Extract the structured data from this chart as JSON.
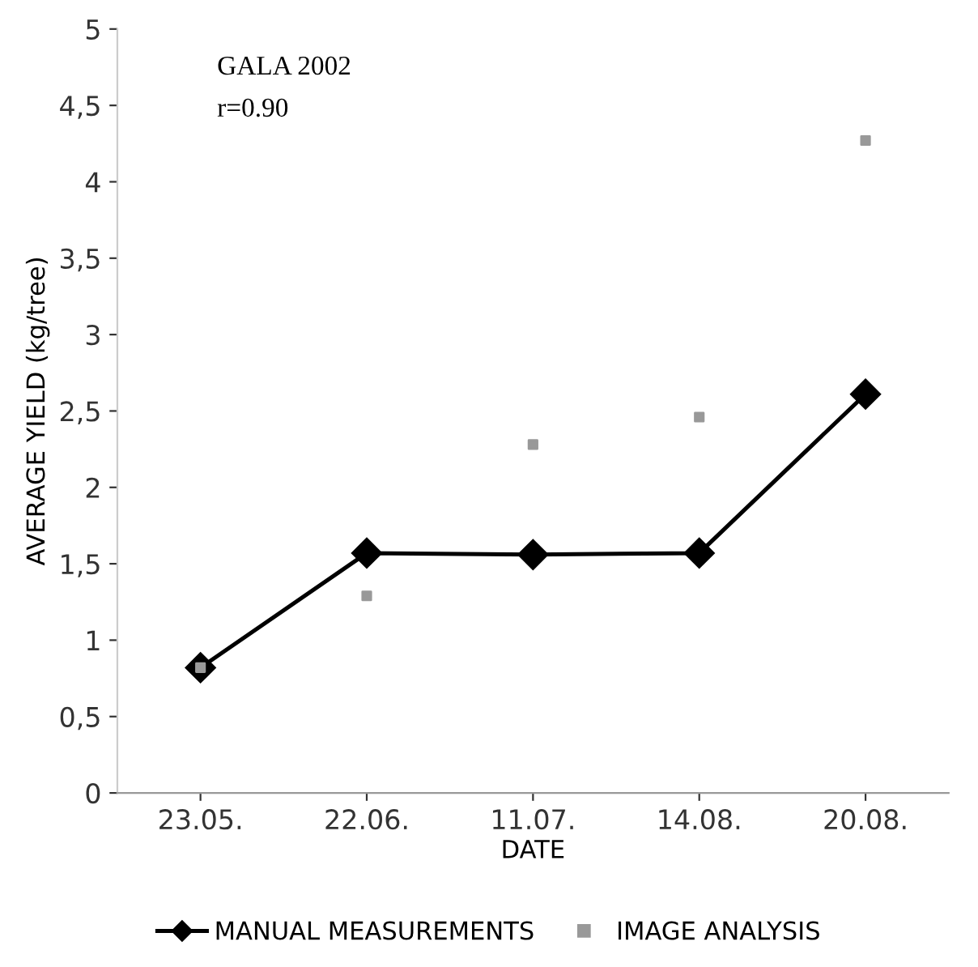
{
  "chart_data": {
    "type": "line",
    "xlabel": "DATE",
    "ylabel": "AVERAGE YIELD (kg/tree)",
    "categories": [
      "23.05.",
      "22.06.",
      "11.07.",
      "14.08.",
      "20.08."
    ],
    "series": [
      {
        "name": "MANUAL MEASUREMENTS",
        "color": "#000000",
        "marker": "diamond",
        "line_style": "solid",
        "values": [
          0.82,
          1.57,
          1.56,
          1.57,
          2.61
        ]
      },
      {
        "name": "IMAGE ANALYSIS",
        "color": "#999999",
        "type": "scatter",
        "marker": "square",
        "values": [
          0.82,
          1.29,
          2.28,
          2.46,
          4.27
        ]
      }
    ],
    "ylim": [
      0,
      5
    ],
    "yticks": [
      0,
      {
        "value": 0.5,
        "label": "0,5"
      },
      1,
      {
        "value": 1.5,
        "label": "1,5"
      },
      2,
      {
        "value": 2.5,
        "label": "2,5"
      },
      3,
      {
        "value": 3.5,
        "label": "3,5"
      },
      4,
      {
        "value": 4.5,
        "label": "4,5"
      },
      5
    ],
    "grid": false,
    "legend": "bottom",
    "annotations": [
      "GALA 2002",
      "r=0.90"
    ]
  }
}
